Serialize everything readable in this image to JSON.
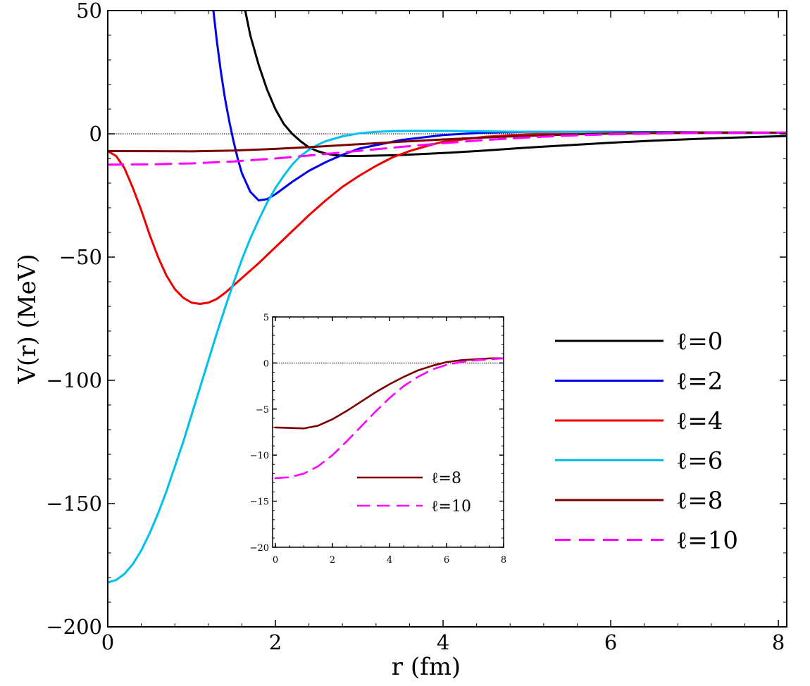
{
  "chart_data": [
    {
      "type": "line",
      "id": "main",
      "xlabel": "r (fm)",
      "ylabel": "V(r) (MeV)",
      "xlim": [
        0,
        8.1
      ],
      "ylim": [
        -200,
        50
      ],
      "xticks": [
        0,
        2,
        4,
        6,
        8
      ],
      "xtick_labels": [
        "0",
        "2",
        "4",
        "6",
        "8"
      ],
      "yticks": [
        50,
        0,
        -50,
        -100,
        -150,
        -200
      ],
      "ytick_labels": [
        "50",
        "0",
        "−50",
        "−100",
        "−150",
        "−200"
      ],
      "zero_line": true,
      "legend_position": "right",
      "series": [
        {
          "name": "ℓ=0",
          "color": "#000000",
          "dash": "solid",
          "x": [
            1.64,
            1.7,
            1.8,
            1.9,
            2.0,
            2.1,
            2.2,
            2.3,
            2.4,
            2.5,
            2.6,
            2.7,
            2.8,
            2.9,
            3.0,
            3.5,
            4.0,
            4.5,
            5.0,
            5.5,
            6.0,
            6.5,
            7.0,
            7.5,
            8.0,
            8.1
          ],
          "y": [
            50,
            40,
            28,
            18,
            10,
            4,
            0,
            -3,
            -5.5,
            -7,
            -8,
            -8.6,
            -8.9,
            -9,
            -9,
            -8.6,
            -7.8,
            -6.8,
            -5.6,
            -4.6,
            -3.6,
            -2.8,
            -2.1,
            -1.5,
            -1.0,
            -0.9
          ]
        },
        {
          "name": "ℓ=2",
          "color": "#0000ee",
          "dash": "solid",
          "x": [
            1.26,
            1.3,
            1.35,
            1.4,
            1.45,
            1.5,
            1.55,
            1.6,
            1.7,
            1.8,
            1.9,
            2.0,
            2.2,
            2.4,
            2.6,
            2.8,
            3.0,
            3.5,
            4.0,
            4.5,
            5.0,
            6.0,
            7.0,
            8.1
          ],
          "y": [
            50,
            38,
            25,
            14,
            5,
            -3,
            -10,
            -16,
            -23.5,
            -27,
            -26.5,
            -24.5,
            -19.5,
            -15,
            -11.5,
            -8.5,
            -6,
            -2.5,
            -0.5,
            0.5,
            0.8,
            0.8,
            0.6,
            0.4
          ]
        },
        {
          "name": "ℓ=4",
          "color": "#ee0000",
          "dash": "solid",
          "x": [
            0,
            0.1,
            0.2,
            0.3,
            0.4,
            0.5,
            0.6,
            0.7,
            0.8,
            0.9,
            1.0,
            1.1,
            1.2,
            1.3,
            1.4,
            1.5,
            1.6,
            1.7,
            1.8,
            2.0,
            2.2,
            2.4,
            2.6,
            2.8,
            3.0,
            3.2,
            3.4,
            3.6,
            3.8,
            4.0,
            4.5,
            5.0,
            5.5,
            6.0,
            7.0,
            8.1
          ],
          "y": [
            -7,
            -9,
            -14,
            -22,
            -31,
            -41,
            -50,
            -57.5,
            -63,
            -66.5,
            -68.5,
            -69,
            -68.5,
            -67,
            -64.5,
            -61.5,
            -58.5,
            -55.5,
            -52.5,
            -46,
            -39.5,
            -33,
            -27,
            -21.5,
            -17,
            -13,
            -9.5,
            -7,
            -5,
            -3.2,
            -1.2,
            -0.2,
            0.2,
            0.4,
            0.5,
            0.4
          ]
        },
        {
          "name": "ℓ=6",
          "color": "#00c0ee",
          "dash": "solid",
          "x": [
            0,
            0.1,
            0.2,
            0.3,
            0.4,
            0.5,
            0.6,
            0.7,
            0.8,
            0.9,
            1.0,
            1.1,
            1.2,
            1.3,
            1.4,
            1.5,
            1.6,
            1.7,
            1.8,
            1.9,
            2.0,
            2.1,
            2.2,
            2.3,
            2.4,
            2.5,
            2.6,
            2.8,
            3.0,
            3.2,
            3.4,
            3.6,
            4.0,
            4.5,
            5.0,
            6.0,
            7.0,
            8.1
          ],
          "y": [
            -182,
            -181,
            -178.5,
            -174.5,
            -169,
            -162,
            -154,
            -145,
            -135,
            -125,
            -114,
            -103,
            -92,
            -81,
            -70.5,
            -60.5,
            -51,
            -42.5,
            -35,
            -28,
            -22,
            -17,
            -12.5,
            -9,
            -6.5,
            -4.5,
            -3,
            -1,
            0.2,
            0.8,
            1.1,
            1.2,
            1.2,
            1.0,
            0.8,
            0.6,
            0.4,
            0.3
          ]
        },
        {
          "name": "ℓ=8",
          "color": "#7a0000",
          "dash": "solid",
          "x": [
            0,
            0.5,
            1.0,
            1.5,
            2.0,
            2.5,
            3.0,
            3.5,
            4.0,
            4.5,
            5.0,
            5.5,
            6.0,
            6.5,
            7.0,
            7.5,
            8.1
          ],
          "y": [
            -7,
            -7.05,
            -7.1,
            -6.8,
            -6.1,
            -5.2,
            -4.2,
            -3.2,
            -2.3,
            -1.5,
            -0.8,
            -0.3,
            0.1,
            0.3,
            0.4,
            0.5,
            0.5
          ]
        },
        {
          "name": "ℓ=10",
          "color": "#ff00ff",
          "dash": "dashed",
          "x": [
            0,
            0.5,
            1.0,
            1.5,
            2.0,
            2.5,
            3.0,
            3.5,
            4.0,
            4.5,
            5.0,
            5.5,
            6.0,
            6.5,
            7.0,
            7.5,
            8.1
          ],
          "y": [
            -12.5,
            -12.4,
            -12,
            -11.2,
            -10,
            -8.5,
            -6.9,
            -5.3,
            -3.8,
            -2.5,
            -1.5,
            -0.7,
            -0.2,
            0.1,
            0.3,
            0.4,
            0.5
          ]
        }
      ]
    },
    {
      "type": "line",
      "id": "inset",
      "xlabel": "",
      "ylabel": "",
      "xlim": [
        -0.1,
        8
      ],
      "ylim": [
        -20,
        5
      ],
      "xticks": [
        0,
        2,
        4,
        6,
        8
      ],
      "xtick_labels": [
        "0",
        "2",
        "4",
        "6",
        "8"
      ],
      "yticks": [
        5,
        0,
        -5,
        -10,
        -15,
        -20
      ],
      "ytick_labels": [
        "5",
        "0",
        "−5",
        "−10",
        "−15",
        "−20"
      ],
      "zero_line": true,
      "legend_position": "lower-right",
      "series": [
        {
          "name": "ℓ=8",
          "color": "#7a0000",
          "dash": "solid",
          "x": [
            0,
            0.5,
            1.0,
            1.5,
            2.0,
            2.5,
            3.0,
            3.5,
            4.0,
            4.5,
            5.0,
            5.5,
            6.0,
            6.5,
            7.0,
            7.5,
            8.0
          ],
          "y": [
            -7,
            -7.05,
            -7.1,
            -6.8,
            -6.1,
            -5.2,
            -4.2,
            -3.2,
            -2.3,
            -1.5,
            -0.8,
            -0.3,
            0.1,
            0.3,
            0.4,
            0.5,
            0.5
          ]
        },
        {
          "name": "ℓ=10",
          "color": "#ff00ff",
          "dash": "dashed",
          "x": [
            0,
            0.5,
            1.0,
            1.5,
            2.0,
            2.5,
            3.0,
            3.5,
            4.0,
            4.5,
            5.0,
            5.5,
            6.0,
            6.5,
            7.0,
            7.5,
            8.0
          ],
          "y": [
            -12.5,
            -12.4,
            -12,
            -11.2,
            -10,
            -8.5,
            -6.9,
            -5.3,
            -3.8,
            -2.5,
            -1.5,
            -0.7,
            -0.2,
            0.1,
            0.3,
            0.4,
            0.5
          ]
        }
      ]
    }
  ]
}
